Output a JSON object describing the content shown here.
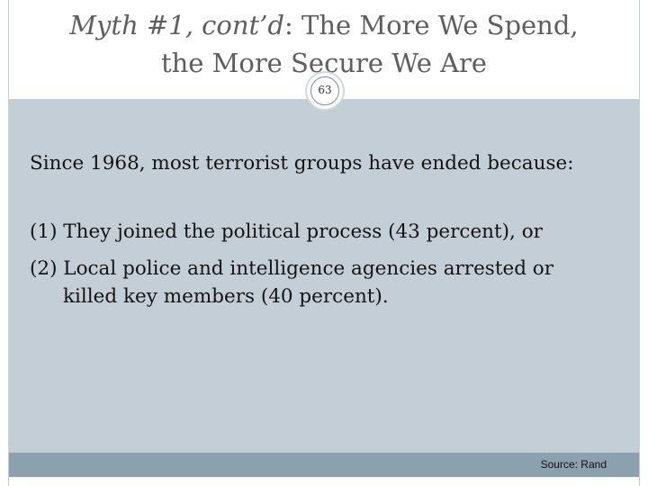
{
  "slide": {
    "title_italic": "Myth #1, cont’d",
    "title_rest": ": The More We Spend,",
    "title_line2": "the More Secure We Are",
    "page_number": "63",
    "intro": "Since 1968, most terrorist groups have ended because:",
    "point1": "(1)  They joined the political process (43 percent), or",
    "point2_line1": "(2)  Local police and intelligence agencies arrested or",
    "point2_line2": "killed key members (40 percent).",
    "source": "Source: Rand"
  },
  "colors": {
    "content_bg": "#c4ced6",
    "footer_bg": "#8ba1ad",
    "title_text": "#5e5e5e"
  }
}
